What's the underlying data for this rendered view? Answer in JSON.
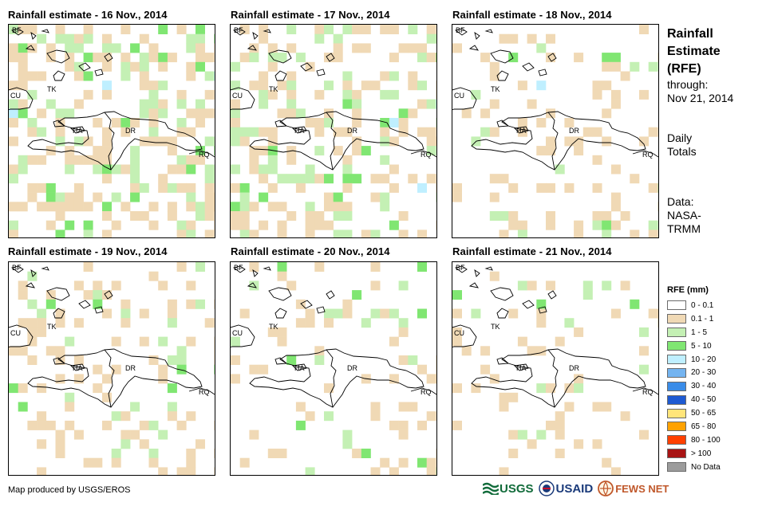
{
  "panels": [
    {
      "title": "Rainfall estimate - 16 Nov., 2014",
      "seed": 16,
      "density": 0.42,
      "green": 0.42
    },
    {
      "title": "Rainfall estimate - 17 Nov., 2014",
      "seed": 17,
      "density": 0.36,
      "green": 0.35
    },
    {
      "title": "Rainfall estimate - 18 Nov., 2014",
      "seed": 18,
      "density": 0.18,
      "green": 0.3
    },
    {
      "title": "Rainfall estimate - 19 Nov., 2014",
      "seed": 19,
      "density": 0.22,
      "green": 0.22
    },
    {
      "title": "Rainfall estimate - 20 Nov., 2014",
      "seed": 20,
      "density": 0.14,
      "green": 0.3
    },
    {
      "title": "Rainfall estimate - 21 Nov., 2014",
      "seed": 21,
      "density": 0.14,
      "green": 0.22
    }
  ],
  "country_labels": {
    "bf": "BF",
    "cu": "CU",
    "ha": "HA",
    "dr": "DR",
    "rq": "RQ",
    "tk": "TK"
  },
  "title_block": {
    "line1": "Rainfall",
    "line2": "Estimate",
    "line3": "(RFE)",
    "through_label": "through:",
    "through_date": "Nov 21, 2014",
    "totals_line1": "Daily",
    "totals_line2": "Totals",
    "data_label": "Data:",
    "source_line1": "NASA-",
    "source_line2": "TRMM"
  },
  "legend": {
    "title": "RFE (mm)",
    "items": [
      {
        "label": "0 - 0.1",
        "color": "#ffffff"
      },
      {
        "label": "0.1 - 1",
        "color": "#f0d9b5"
      },
      {
        "label": "1 - 5",
        "color": "#c4f0b4"
      },
      {
        "label": "5 - 10",
        "color": "#80e672"
      },
      {
        "label": "10 - 20",
        "color": "#bfefff"
      },
      {
        "label": "20 - 30",
        "color": "#74b4f0"
      },
      {
        "label": "30 - 40",
        "color": "#3a8ce8"
      },
      {
        "label": "40 - 50",
        "color": "#1e5ad2"
      },
      {
        "label": "50 - 65",
        "color": "#ffe57a"
      },
      {
        "label": "65 - 80",
        "color": "#ffa200"
      },
      {
        "label": "80 - 100",
        "color": "#ff4000"
      },
      {
        "label": "> 100",
        "color": "#a81414"
      },
      {
        "label": "No Data",
        "color": "#9c9c9c"
      }
    ]
  },
  "footer": {
    "credit": "Map produced by USGS/EROS"
  },
  "logos": {
    "usgs": "USGS",
    "usaid": "USAID",
    "fews": "FEWS NET"
  }
}
